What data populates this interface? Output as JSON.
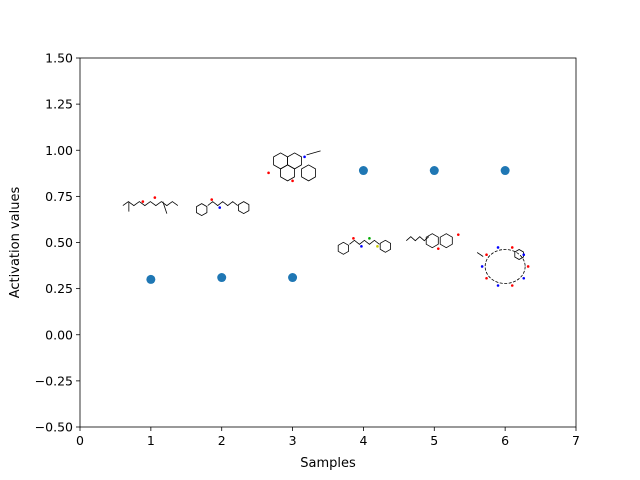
{
  "chart_data": {
    "type": "scatter",
    "title": "",
    "xlabel": "Samples",
    "ylabel": "Activation values",
    "xlim": [
      0,
      7
    ],
    "ylim": [
      -0.5,
      1.5
    ],
    "xticks": [
      0,
      1,
      2,
      3,
      4,
      5,
      6,
      7
    ],
    "yticks": [
      -0.5,
      -0.25,
      0.0,
      0.25,
      0.5,
      0.75,
      1.0,
      1.25,
      1.5
    ],
    "xtick_labels": [
      "0",
      "1",
      "2",
      "3",
      "4",
      "5",
      "6",
      "7"
    ],
    "ytick_labels": [
      "−0.50",
      "−0.25",
      "0.00",
      "0.25",
      "0.50",
      "0.75",
      "1.00",
      "1.25",
      "1.50"
    ],
    "grid": false,
    "marker_color": "#1f77b4",
    "points": [
      {
        "x": 1,
        "y": 0.3
      },
      {
        "x": 2,
        "y": 0.31
      },
      {
        "x": 3,
        "y": 0.31
      },
      {
        "x": 4,
        "y": 0.89
      },
      {
        "x": 5,
        "y": 0.89
      },
      {
        "x": 6,
        "y": 0.89
      }
    ],
    "structure_images": [
      {
        "x": 1,
        "y": 0.7,
        "style": "chain",
        "accents": [
          "#ff0000"
        ]
      },
      {
        "x": 2,
        "y": 0.7,
        "style": "ring-chain",
        "accents": [
          "#ff0000",
          "#0000ff"
        ]
      },
      {
        "x": 3,
        "y": 0.91,
        "style": "fused-rings",
        "accents": [
          "#ff0000",
          "#0000ff"
        ]
      },
      {
        "x": 4,
        "y": 0.49,
        "style": "ring-chain",
        "accents": [
          "#ff0000",
          "#0000ff",
          "#00aa00",
          "#cccc00"
        ]
      },
      {
        "x": 5,
        "y": 0.51,
        "style": "chain-ring",
        "accents": [
          "#ff0000"
        ]
      },
      {
        "x": 6,
        "y": 0.37,
        "style": "macrocycle",
        "accents": [
          "#ff0000",
          "#0000ff"
        ]
      }
    ]
  }
}
